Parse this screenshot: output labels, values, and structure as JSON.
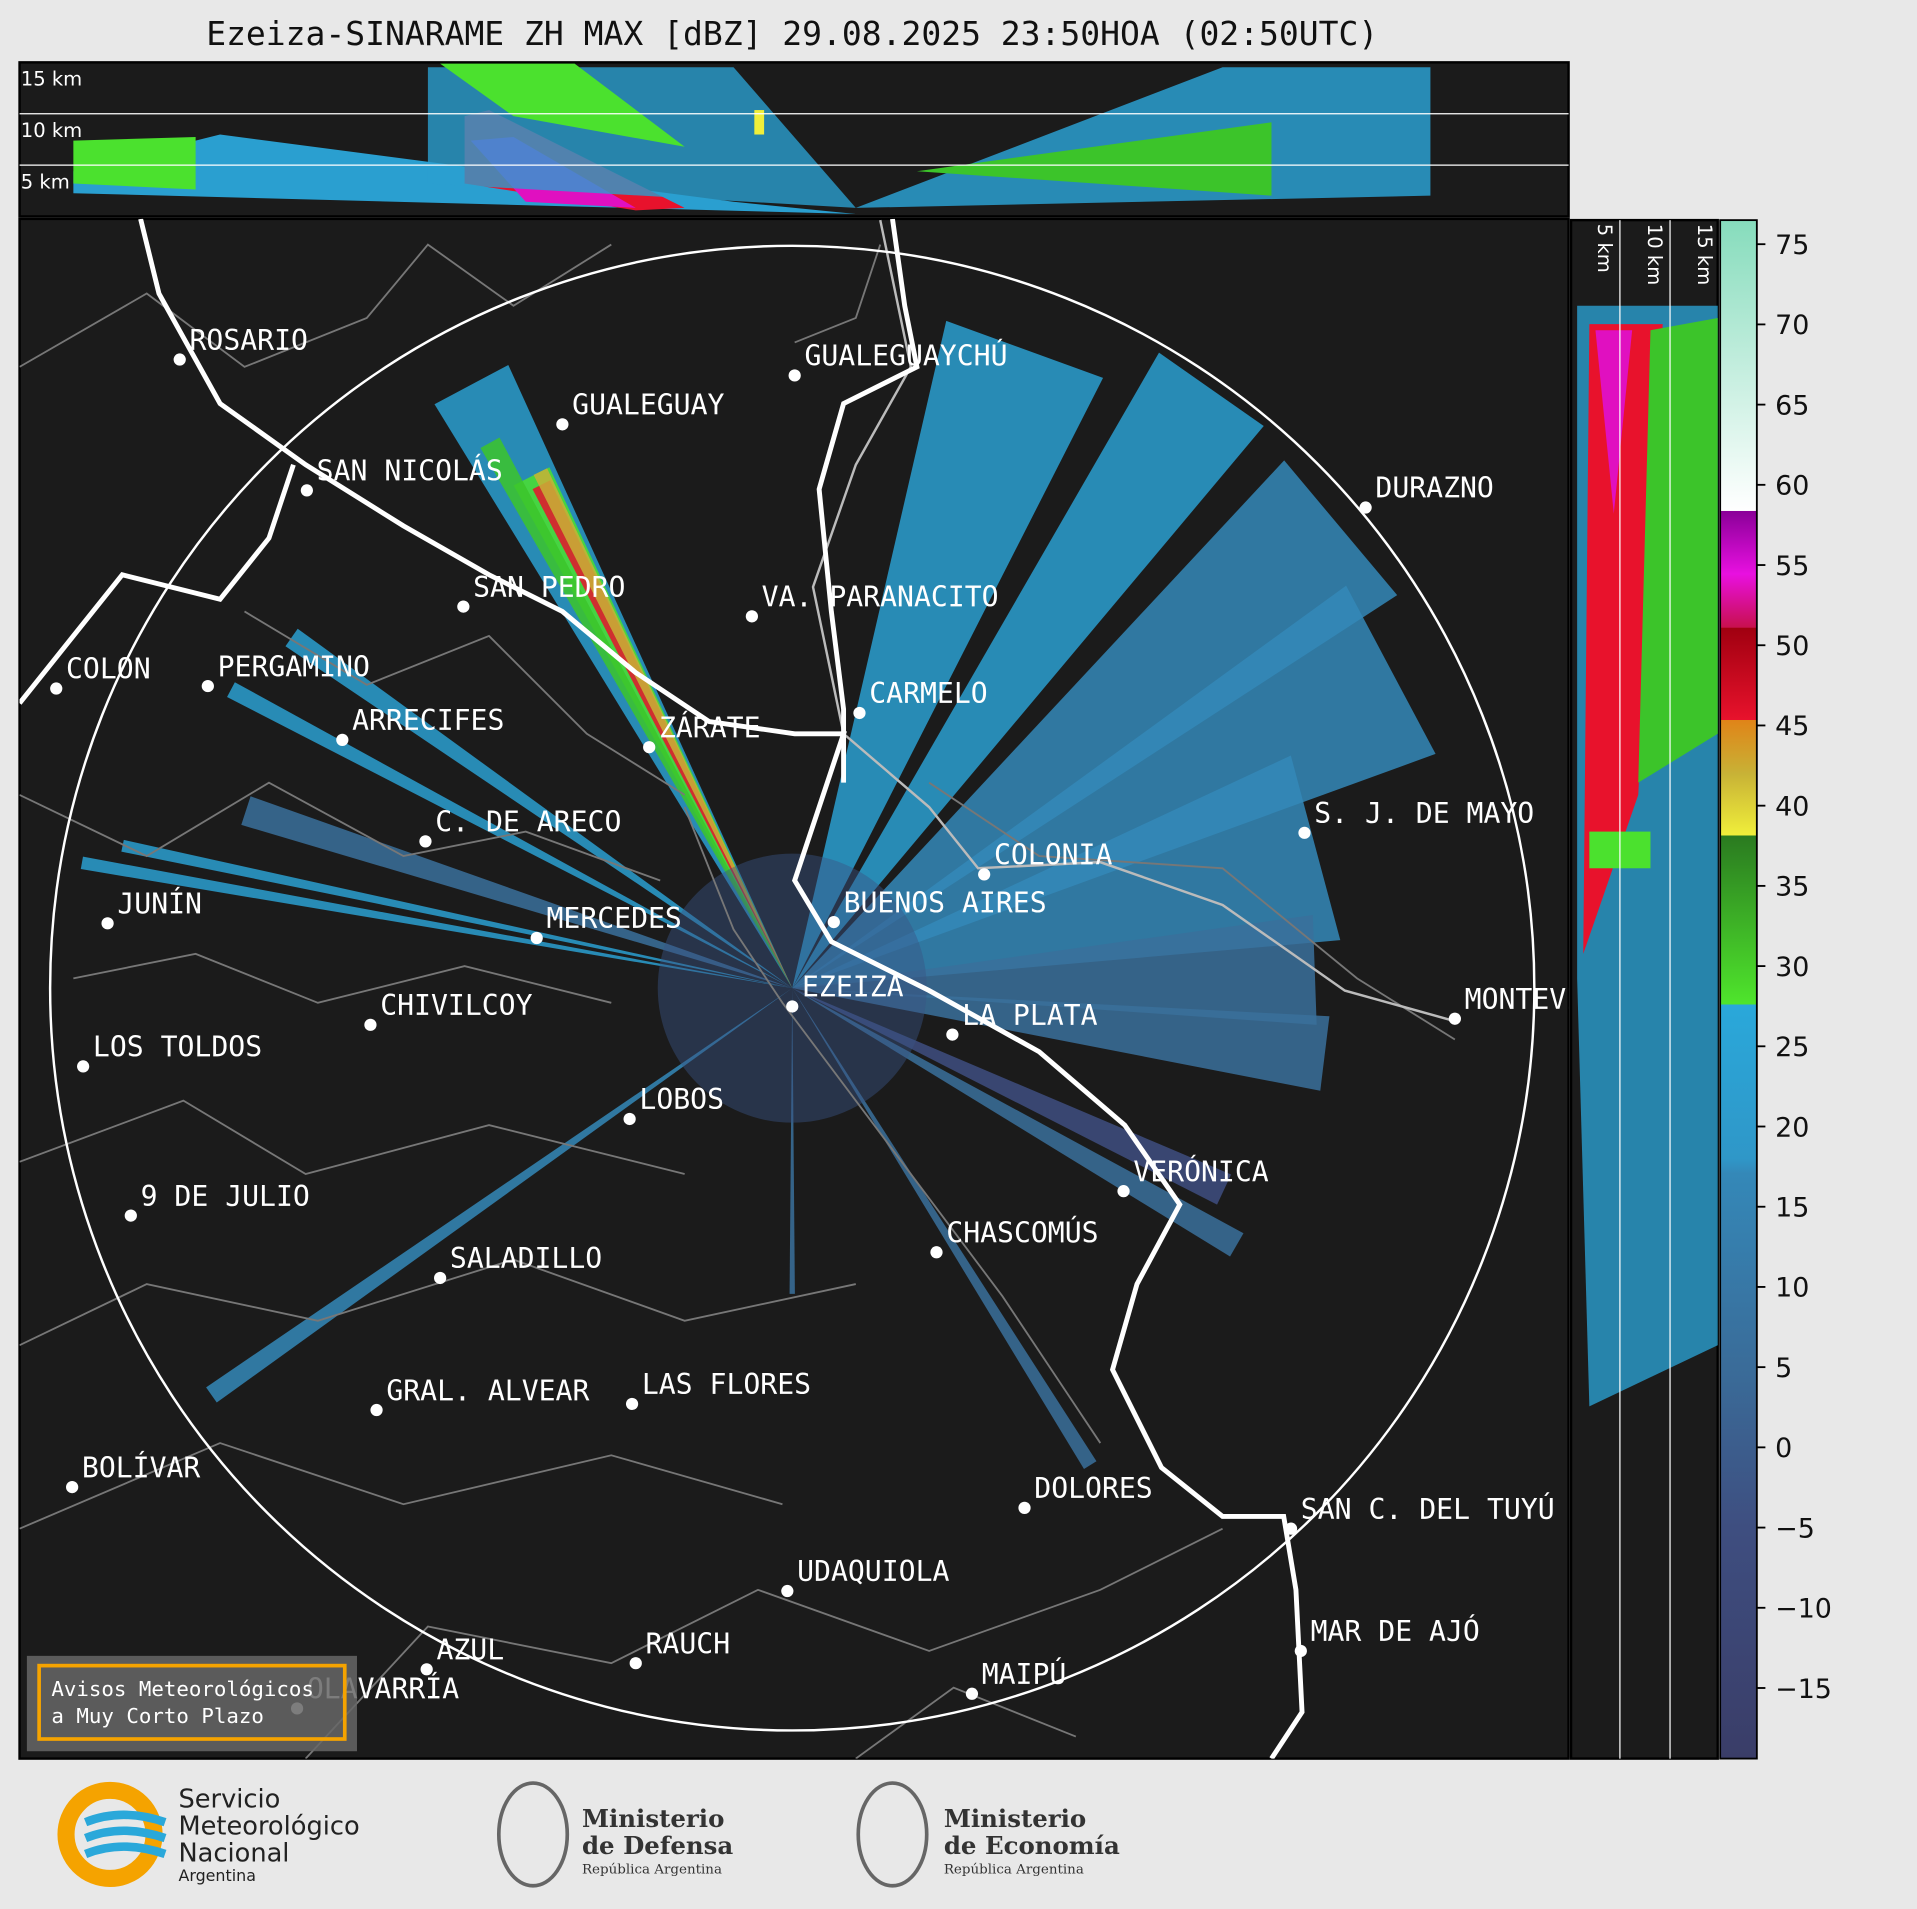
{
  "header": {
    "title": "Ezeiza-SINARAME ZH MAX [dBZ] 29.08.2025 23:50HOA (02:50UTC)"
  },
  "top_panel": {
    "height_labels": [
      "15 km",
      "10 km",
      "5 km"
    ]
  },
  "side_panel": {
    "height_labels": [
      "5 km",
      "10 km",
      "15 km"
    ]
  },
  "map": {
    "cities": [
      "ROSARIO",
      "GUALEGUAYCHÚ",
      "GUALEGUAY",
      "SAN NICOLÁS",
      "DURAZNO",
      "SAN PEDRO",
      "VA. PARANACITO",
      "COLON",
      "PERGAMINO",
      "CARMELO",
      "ARRECIFES",
      "ZÁRATE",
      "C. DE ARECO",
      "S. J. DE MAYO",
      "COLONIA",
      "BUENOS AIRES",
      "JUNÍN",
      "MERCEDES",
      "EZEIZA",
      "MONTEVIDEO",
      "CHIVILCOY",
      "LA PLATA",
      "LOS TOLDOS",
      "LOBOS",
      "VERÓNICA",
      "9 DE JULIO",
      "CHASCOMÚS",
      "SALADILLO",
      "GRAL. ALVEAR",
      "LAS FLORES",
      "BOLÍVAR",
      "DOLORES",
      "SAN C. DEL TUYÚ",
      "UDAQUIOLA",
      "MAR DE AJÓ",
      "AZUL",
      "RAUCH",
      "OLAVARRÍA",
      "MAIPÚ"
    ],
    "notice": [
      "Avisos Meteorológicos",
      "a Muy Corto Plazo"
    ]
  },
  "colorbar": {
    "lim": [
      -19.4,
      76.5
    ],
    "ticks": [
      75,
      70,
      65,
      60,
      55,
      50,
      45,
      40,
      35,
      30,
      25,
      20,
      15,
      10,
      5,
      0,
      {
        "value": -5,
        "label": "−5"
      },
      {
        "value": -10,
        "label": "−10"
      },
      {
        "value": -15,
        "label": "−15"
      }
    ]
  },
  "footer": {
    "smn": [
      "Servicio",
      "Meteorológico",
      "Nacional",
      "Argentina"
    ],
    "defensa": [
      "Ministerio",
      "de Defensa",
      "República Argentina"
    ],
    "economia": [
      "Ministerio",
      "de Economía",
      "República Argentina"
    ]
  }
}
